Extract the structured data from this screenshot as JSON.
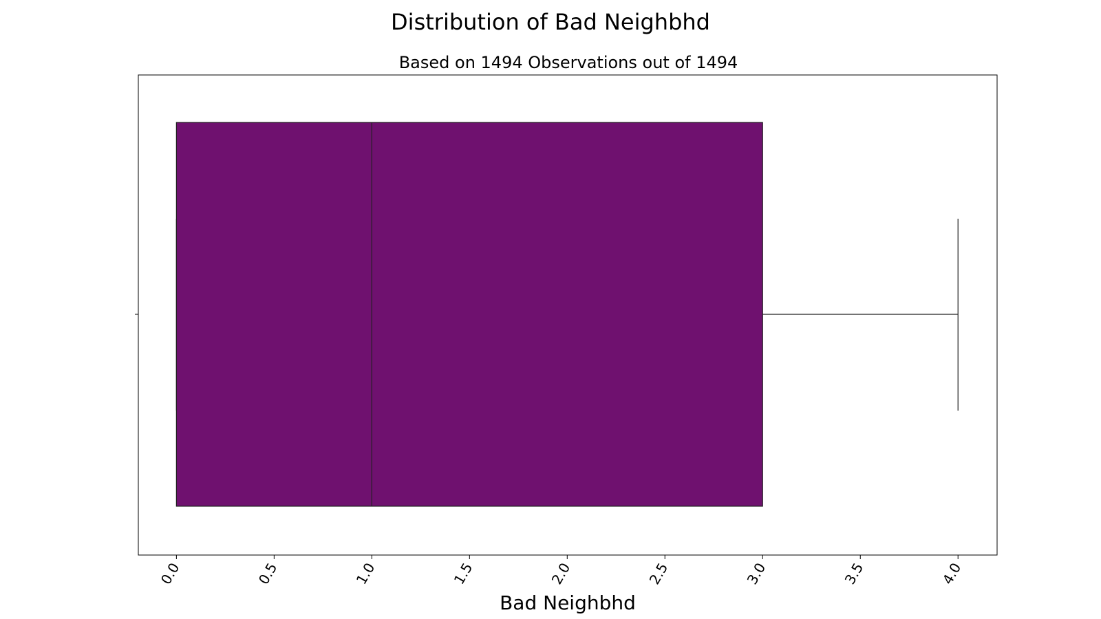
{
  "chart_data": {
    "type": "box",
    "title": "Distribution of Bad Neighbhd",
    "subtitle": "Based on 1494 Observations out of 1494",
    "xlabel": "Bad Neighbhd",
    "ylabel": "",
    "xlim": [
      -0.195,
      4.2
    ],
    "x_ticks": [
      0.0,
      0.5,
      1.0,
      1.5,
      2.0,
      2.5,
      3.0,
      3.5,
      4.0
    ],
    "x_tick_labels": [
      "0.0",
      "0.5",
      "1.0",
      "1.5",
      "2.0",
      "2.5",
      "3.0",
      "3.5",
      "4.0"
    ],
    "tick_label_rotation_deg": -60,
    "grid": false,
    "legend": "none",
    "series": [
      {
        "min": 0.0,
        "q1": 0.0,
        "median": 1.0,
        "q3": 3.0,
        "max": 4.0,
        "n": 1494,
        "color": "#6f116f"
      }
    ]
  }
}
